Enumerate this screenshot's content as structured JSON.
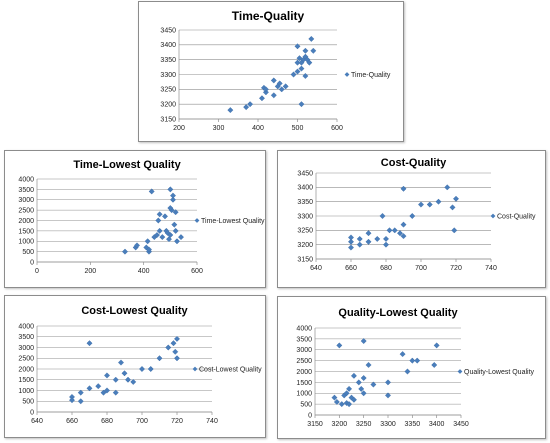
{
  "chart_data": [
    {
      "type": "scatter",
      "title": "Time-Quality",
      "series": [
        {
          "name": "Time-Quality",
          "points": [
            [
              330,
              3180
            ],
            [
              370,
              3190
            ],
            [
              380,
              3200
            ],
            [
              410,
              3220
            ],
            [
              420,
              3240
            ],
            [
              415,
              3255
            ],
            [
              420,
              3250
            ],
            [
              440,
              3230
            ],
            [
              450,
              3260
            ],
            [
              455,
              3270
            ],
            [
              460,
              3250
            ],
            [
              440,
              3280
            ],
            [
              470,
              3260
            ],
            [
              490,
              3300
            ],
            [
              500,
              3310
            ],
            [
              510,
              3320
            ],
            [
              500,
              3340
            ],
            [
              505,
              3355
            ],
            [
              515,
              3350
            ],
            [
              520,
              3360
            ],
            [
              525,
              3350
            ],
            [
              530,
              3340
            ],
            [
              510,
              3340
            ],
            [
              500,
              3395
            ],
            [
              520,
              3380
            ],
            [
              540,
              3380
            ],
            [
              535,
              3420
            ],
            [
              520,
              3295
            ],
            [
              510,
              3200
            ]
          ]
        }
      ],
      "xlim": [
        200,
        600
      ],
      "ylim": [
        3150,
        3450
      ],
      "xticks": [
        200,
        300,
        400,
        500,
        600
      ],
      "yticks": [
        3150,
        3200,
        3250,
        3300,
        3350,
        3400,
        3450
      ],
      "legend": "right",
      "grid": "horizontal",
      "color": "#4a7ebb"
    },
    {
      "type": "scatter",
      "title": "Time-Lowest Quality",
      "series": [
        {
          "name": "Time-Lowest Quality",
          "points": [
            [
              330,
              500
            ],
            [
              370,
              700
            ],
            [
              375,
              800
            ],
            [
              410,
              700
            ],
            [
              420,
              500
            ],
            [
              420,
              600
            ],
            [
              415,
              1000
            ],
            [
              430,
              3400
            ],
            [
              440,
              1200
            ],
            [
              450,
              1300
            ],
            [
              455,
              2000
            ],
            [
              460,
              1500
            ],
            [
              460,
              2300
            ],
            [
              470,
              1200
            ],
            [
              480,
              2200
            ],
            [
              485,
              1500
            ],
            [
              490,
              1400
            ],
            [
              495,
              1100
            ],
            [
              500,
              1300
            ],
            [
              500,
              3500
            ],
            [
              505,
              2500
            ],
            [
              510,
              3000
            ],
            [
              510,
              3200
            ],
            [
              515,
              1800
            ],
            [
              520,
              1500
            ],
            [
              520,
              2400
            ],
            [
              525,
              1000
            ],
            [
              540,
              1200
            ],
            [
              500,
              2600
            ]
          ]
        }
      ],
      "xlim": [
        0,
        600
      ],
      "ylim": [
        0,
        4000
      ],
      "xticks": [
        0,
        200,
        400,
        600
      ],
      "yticks": [
        0,
        500,
        1000,
        1500,
        2000,
        2500,
        3000,
        3500,
        4000
      ],
      "legend": "right",
      "grid": "horizontal",
      "color": "#4a7ebb"
    },
    {
      "type": "scatter",
      "title": "Cost-Quality",
      "series": [
        {
          "name": "Cost-Quality",
          "points": [
            [
              660,
              3190
            ],
            [
              660,
              3210
            ],
            [
              660,
              3225
            ],
            [
              665,
              3200
            ],
            [
              665,
              3220
            ],
            [
              670,
              3240
            ],
            [
              675,
              3220
            ],
            [
              670,
              3210
            ],
            [
              680,
              3200
            ],
            [
              680,
              3220
            ],
            [
              682,
              3250
            ],
            [
              678,
              3300
            ],
            [
              685,
              3250
            ],
            [
              688,
              3240
            ],
            [
              690,
              3230
            ],
            [
              690,
              3270
            ],
            [
              690,
              3395
            ],
            [
              695,
              3300
            ],
            [
              700,
              3340
            ],
            [
              705,
              3340
            ],
            [
              710,
              3350
            ],
            [
              715,
              3400
            ],
            [
              718,
              3330
            ],
            [
              720,
              3360
            ],
            [
              719,
              3250
            ]
          ]
        }
      ],
      "xlim": [
        640,
        740
      ],
      "ylim": [
        3150,
        3450
      ],
      "xticks": [
        640,
        660,
        680,
        700,
        720,
        740
      ],
      "yticks": [
        3150,
        3200,
        3250,
        3300,
        3350,
        3400,
        3450
      ],
      "legend": "right",
      "grid": "horizontal",
      "color": "#4a7ebb"
    },
    {
      "type": "scatter",
      "title": "Cost-Lowest Quality",
      "series": [
        {
          "name": "Cost-Lowest Quality",
          "points": [
            [
              660,
              700
            ],
            [
              660,
              550
            ],
            [
              665,
              500
            ],
            [
              665,
              900
            ],
            [
              670,
              3200
            ],
            [
              670,
              1100
            ],
            [
              675,
              1200
            ],
            [
              678,
              900
            ],
            [
              680,
              1000
            ],
            [
              680,
              1700
            ],
            [
              685,
              900
            ],
            [
              685,
              1500
            ],
            [
              690,
              1800
            ],
            [
              688,
              2300
            ],
            [
              692,
              1500
            ],
            [
              695,
              1400
            ],
            [
              700,
              2000
            ],
            [
              705,
              2000
            ],
            [
              710,
              2500
            ],
            [
              715,
              3000
            ],
            [
              718,
              3200
            ],
            [
              719,
              2800
            ],
            [
              720,
              3400
            ],
            [
              720,
              2500
            ]
          ]
        }
      ],
      "xlim": [
        640,
        740
      ],
      "ylim": [
        0,
        4000
      ],
      "xticks": [
        640,
        660,
        680,
        700,
        720,
        740
      ],
      "yticks": [
        0,
        500,
        1000,
        1500,
        2000,
        2500,
        3000,
        3500,
        4000
      ],
      "legend": "right",
      "grid": "horizontal",
      "color": "#4a7ebb"
    },
    {
      "type": "scatter",
      "title": "Quality-Lowest Quality",
      "series": [
        {
          "name": "Quality-Lowest Quality",
          "points": [
            [
              3190,
              800
            ],
            [
              3195,
              600
            ],
            [
              3200,
              3200
            ],
            [
              3205,
              500
            ],
            [
              3210,
              900
            ],
            [
              3215,
              1000
            ],
            [
              3220,
              1200
            ],
            [
              3215,
              550
            ],
            [
              3220,
              500
            ],
            [
              3225,
              800
            ],
            [
              3230,
              700
            ],
            [
              3230,
              1800
            ],
            [
              3240,
              1500
            ],
            [
              3245,
              1200
            ],
            [
              3250,
              1000
            ],
            [
              3250,
              3400
            ],
            [
              3250,
              1700
            ],
            [
              3260,
              2300
            ],
            [
              3270,
              1400
            ],
            [
              3300,
              1500
            ],
            [
              3300,
              900
            ],
            [
              3330,
              2800
            ],
            [
              3340,
              2000
            ],
            [
              3350,
              2500
            ],
            [
              3360,
              2500
            ],
            [
              3395,
              2300
            ],
            [
              3400,
              3200
            ]
          ]
        }
      ],
      "xlim": [
        3150,
        3450
      ],
      "ylim": [
        0,
        4000
      ],
      "xticks": [
        3150,
        3200,
        3250,
        3300,
        3350,
        3400,
        3450
      ],
      "yticks": [
        0,
        500,
        1000,
        1500,
        2000,
        2500,
        3000,
        3500,
        4000
      ],
      "legend": "right",
      "grid": "horizontal",
      "color": "#4a7ebb"
    }
  ]
}
